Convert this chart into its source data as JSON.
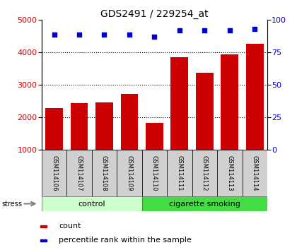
{
  "title": "GDS2491 / 229254_at",
  "samples": [
    "GSM114106",
    "GSM114107",
    "GSM114108",
    "GSM114109",
    "GSM114110",
    "GSM114111",
    "GSM114112",
    "GSM114113",
    "GSM114114"
  ],
  "counts": [
    2300,
    2450,
    2460,
    2730,
    1840,
    3850,
    3380,
    3950,
    4260
  ],
  "percentile_ranks": [
    89,
    89,
    89,
    89,
    87,
    92,
    92,
    92,
    93
  ],
  "bar_color": "#cc0000",
  "dot_color": "#0000cc",
  "ylim_left": [
    1000,
    5000
  ],
  "ylim_right": [
    0,
    100
  ],
  "yticks_left": [
    1000,
    2000,
    3000,
    4000,
    5000
  ],
  "yticks_right": [
    0,
    25,
    50,
    75,
    100
  ],
  "groups": [
    {
      "label": "control",
      "start": 0,
      "end": 4,
      "color": "#ccffcc"
    },
    {
      "label": "cigarette smoking",
      "start": 4,
      "end": 9,
      "color": "#44dd44"
    }
  ],
  "stress_label": "stress",
  "legend_count_label": "count",
  "legend_pct_label": "percentile rank within the sample",
  "grid_color": "#000000",
  "grid_style": "dotted",
  "label_box_color": "#d0d0d0",
  "bg_color": "#ffffff"
}
